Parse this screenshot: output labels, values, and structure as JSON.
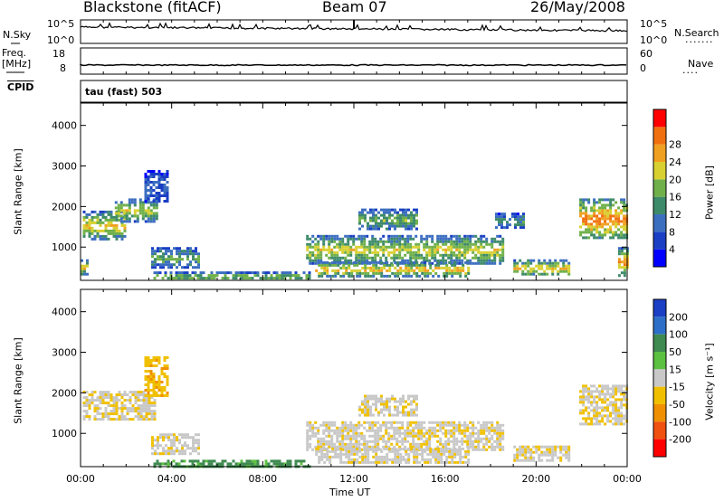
{
  "header": {
    "station": "Blackstone (fitACF)",
    "beam": "Beam 07",
    "date": "26/May/2008"
  },
  "panels": {
    "nsky_label": "N.Sky",
    "nsky_ticks": [
      "10^5",
      "10^0"
    ],
    "nsearch_label": "N.Search",
    "nsearch_ticks": [
      "10^5",
      "10^0"
    ],
    "freq_label": "Freq.",
    "freq_unit": "[MHz]",
    "freq_ticks": [
      "18",
      "8"
    ],
    "nave_label": "Nave",
    "nave_ticks": [
      "60",
      "0"
    ],
    "cpid_label": "CPID",
    "cpid_value": "tau (fast) 503"
  },
  "axes": {
    "ylabel": "Slant Range [km]",
    "xlabel": "Time UT",
    "x_ticks": [
      "00:00",
      "04:00",
      "08:00",
      "12:00",
      "16:00",
      "20:00",
      "00:00"
    ],
    "y_ticks": [
      "1000",
      "2000",
      "3000",
      "4000"
    ]
  },
  "colorbars": {
    "power_label": "Power [dB]",
    "power_ticks": [
      "4",
      "8",
      "12",
      "16",
      "20",
      "24",
      "28"
    ],
    "power_colors": [
      "#0000ff",
      "#1a3fc4",
      "#3c6ec0",
      "#3d8a6a",
      "#6fb04a",
      "#d8d030",
      "#f0a020",
      "#f07010",
      "#ff0000"
    ],
    "velocity_label": "Velocity [m s⁻¹]",
    "velocity_ticks": [
      "200",
      "100",
      "50",
      "15",
      "-15",
      "-50",
      "-100",
      "-200"
    ],
    "velocity_colors": [
      "#1a3fc4",
      "#2d6fc8",
      "#3e8a50",
      "#5cc040",
      "#c8c8c8",
      "#f0c000",
      "#f09000",
      "#f05010",
      "#ff0000"
    ]
  },
  "chart_data": [
    {
      "type": "heatmap",
      "title": "Power",
      "xlabel": "Time UT",
      "ylabel": "Slant Range [km]",
      "xlim": [
        0,
        24
      ],
      "ylim": [
        180,
        4550
      ],
      "colorbar": "Power [dB]",
      "regions": [
        {
          "t0": 0.0,
          "t1": 0.3,
          "r0": 350,
          "r1": 700,
          "level": 0.6
        },
        {
          "t0": 0.1,
          "t1": 2.0,
          "r0": 1200,
          "r1": 1900,
          "level": 0.6
        },
        {
          "t0": 1.5,
          "t1": 3.3,
          "r0": 1650,
          "r1": 2200,
          "level": 0.55
        },
        {
          "t0": 2.8,
          "t1": 3.8,
          "r0": 2100,
          "r1": 2900,
          "level": 0.2
        },
        {
          "t0": 3.1,
          "t1": 5.2,
          "r0": 500,
          "r1": 1000,
          "level": 0.4
        },
        {
          "t0": 3.2,
          "t1": 10.0,
          "r0": 200,
          "r1": 400,
          "level": 0.5
        },
        {
          "t0": 9.9,
          "t1": 18.5,
          "r0": 600,
          "r1": 1300,
          "level": 0.55
        },
        {
          "t0": 10.3,
          "t1": 17.0,
          "r0": 300,
          "r1": 650,
          "level": 0.65
        },
        {
          "t0": 12.2,
          "t1": 14.8,
          "r0": 1450,
          "r1": 1950,
          "level": 0.45
        },
        {
          "t0": 18.2,
          "t1": 19.5,
          "r0": 1500,
          "r1": 1850,
          "level": 0.35
        },
        {
          "t0": 19.0,
          "t1": 21.5,
          "r0": 300,
          "r1": 700,
          "level": 0.6
        },
        {
          "t0": 21.9,
          "t1": 24.0,
          "r0": 1200,
          "r1": 2200,
          "level": 0.75
        },
        {
          "t0": 23.6,
          "t1": 24.0,
          "r0": 300,
          "r1": 1000,
          "level": 0.7
        }
      ]
    },
    {
      "type": "heatmap",
      "title": "Velocity",
      "xlabel": "Time UT",
      "ylabel": "Slant Range [km]",
      "xlim": [
        0,
        24
      ],
      "ylim": [
        180,
        4550
      ],
      "colorbar": "Velocity [m s⁻¹]",
      "regions": [
        {
          "t0": 0.1,
          "t1": 3.3,
          "r0": 1350,
          "r1": 2050,
          "velocity": -10
        },
        {
          "t0": 2.8,
          "t1": 3.8,
          "r0": 1900,
          "r1": 2900,
          "velocity": -40
        },
        {
          "t0": 3.1,
          "t1": 5.2,
          "r0": 500,
          "r1": 1000,
          "velocity": -5
        },
        {
          "t0": 3.2,
          "t1": 10.0,
          "r0": 200,
          "r1": 350,
          "velocity": 40
        },
        {
          "t0": 9.9,
          "t1": 18.5,
          "r0": 600,
          "r1": 1300,
          "velocity": -5
        },
        {
          "t0": 10.3,
          "t1": 17.0,
          "r0": 300,
          "r1": 650,
          "velocity": -5
        },
        {
          "t0": 12.2,
          "t1": 14.8,
          "r0": 1450,
          "r1": 1950,
          "velocity": -5
        },
        {
          "t0": 19.0,
          "t1": 21.5,
          "r0": 300,
          "r1": 700,
          "velocity": -5
        },
        {
          "t0": 21.9,
          "t1": 24.0,
          "r0": 1200,
          "r1": 2200,
          "velocity": -10
        }
      ]
    }
  ]
}
